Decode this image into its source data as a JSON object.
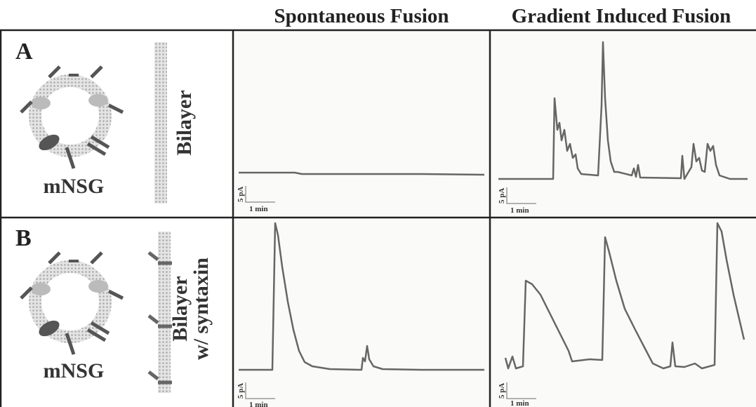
{
  "headers": [
    "Spontaneous Fusion",
    "Gradient Induced Fusion"
  ],
  "panels": [
    {
      "label": "A",
      "vesicle": "mNSG",
      "membrane": [
        "Bilayer"
      ],
      "scale_bars": [
        {
          "current": "5 pA",
          "time": "1 min"
        },
        {
          "current": "5 pA",
          "time": "1 min"
        }
      ]
    },
    {
      "label": "B",
      "vesicle": "mNSG",
      "membrane": [
        "Bilayer",
        "w/ syntaxin"
      ],
      "scale_bars": [
        {
          "current": "5 pA",
          "time": "1 min"
        },
        {
          "current": "5 pA",
          "time": "1 min"
        }
      ]
    }
  ]
}
